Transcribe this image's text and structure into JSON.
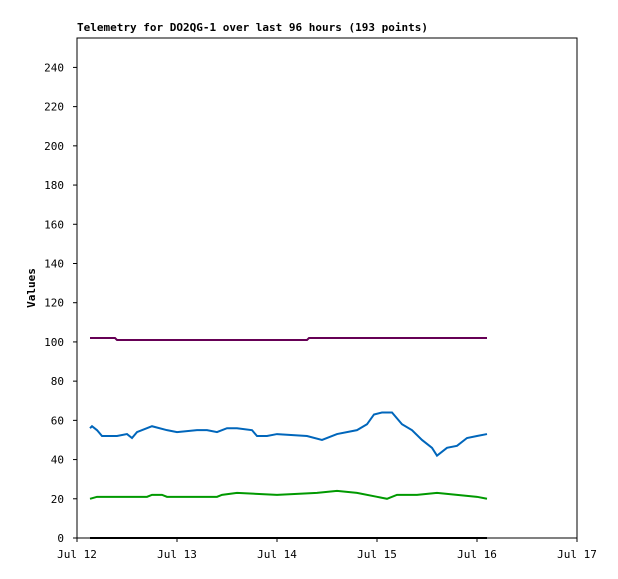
{
  "chart_data": {
    "type": "line",
    "title": "Telemetry for DO2QG-1 over last 96 hours (193 points)",
    "y_label": "Values",
    "xlim": [
      0,
      5
    ],
    "xticks": [
      {
        "value": 0,
        "label": "Jul 12"
      },
      {
        "value": 1,
        "label": "Jul 13"
      },
      {
        "value": 2,
        "label": "Jul 14"
      },
      {
        "value": 3,
        "label": "Jul 15"
      },
      {
        "value": 4,
        "label": "Jul 16"
      },
      {
        "value": 5,
        "label": "Jul 17"
      }
    ],
    "ylim": [
      0,
      255
    ],
    "yticks": [
      0,
      20,
      40,
      60,
      80,
      100,
      120,
      140,
      160,
      180,
      200,
      220,
      240
    ],
    "series": [
      {
        "color": "#000000",
        "x": [
          0.13,
          4.1
        ],
        "values": [
          0,
          0
        ]
      },
      {
        "color": "#660055",
        "x": [
          0.13,
          0.38,
          0.4,
          2.3,
          2.32,
          2.34,
          4.1
        ],
        "values": [
          102,
          102,
          101,
          101,
          102,
          102,
          102
        ]
      },
      {
        "color": "#0066bb",
        "x": [
          0.13,
          0.15,
          0.2,
          0.25,
          0.4,
          0.5,
          0.55,
          0.6,
          0.75,
          0.9,
          1.0,
          1.2,
          1.3,
          1.4,
          1.5,
          1.6,
          1.75,
          1.8,
          1.9,
          2.0,
          2.3,
          2.45,
          2.6,
          2.8,
          2.9,
          2.97,
          3.05,
          3.15,
          3.25,
          3.35,
          3.45,
          3.55,
          3.6,
          3.7,
          3.8,
          3.9,
          4.0,
          4.1
        ],
        "values": [
          56,
          57,
          55,
          52,
          52,
          53,
          51,
          54,
          57,
          55,
          54,
          55,
          55,
          54,
          56,
          56,
          55,
          52,
          52,
          53,
          52,
          50,
          53,
          55,
          58,
          63,
          64,
          64,
          58,
          55,
          50,
          46,
          42,
          46,
          47,
          51,
          52,
          53
        ]
      },
      {
        "color": "#009900",
        "x": [
          0.13,
          0.2,
          0.7,
          0.75,
          0.85,
          0.9,
          1.4,
          1.45,
          1.6,
          2.0,
          2.4,
          2.6,
          2.8,
          3.0,
          3.1,
          3.2,
          3.4,
          3.6,
          3.8,
          4.0,
          4.1
        ],
        "values": [
          20,
          21,
          21,
          22,
          22,
          21,
          21,
          22,
          23,
          22,
          23,
          24,
          23,
          21,
          20,
          22,
          22,
          23,
          22,
          21,
          20
        ]
      }
    ]
  }
}
